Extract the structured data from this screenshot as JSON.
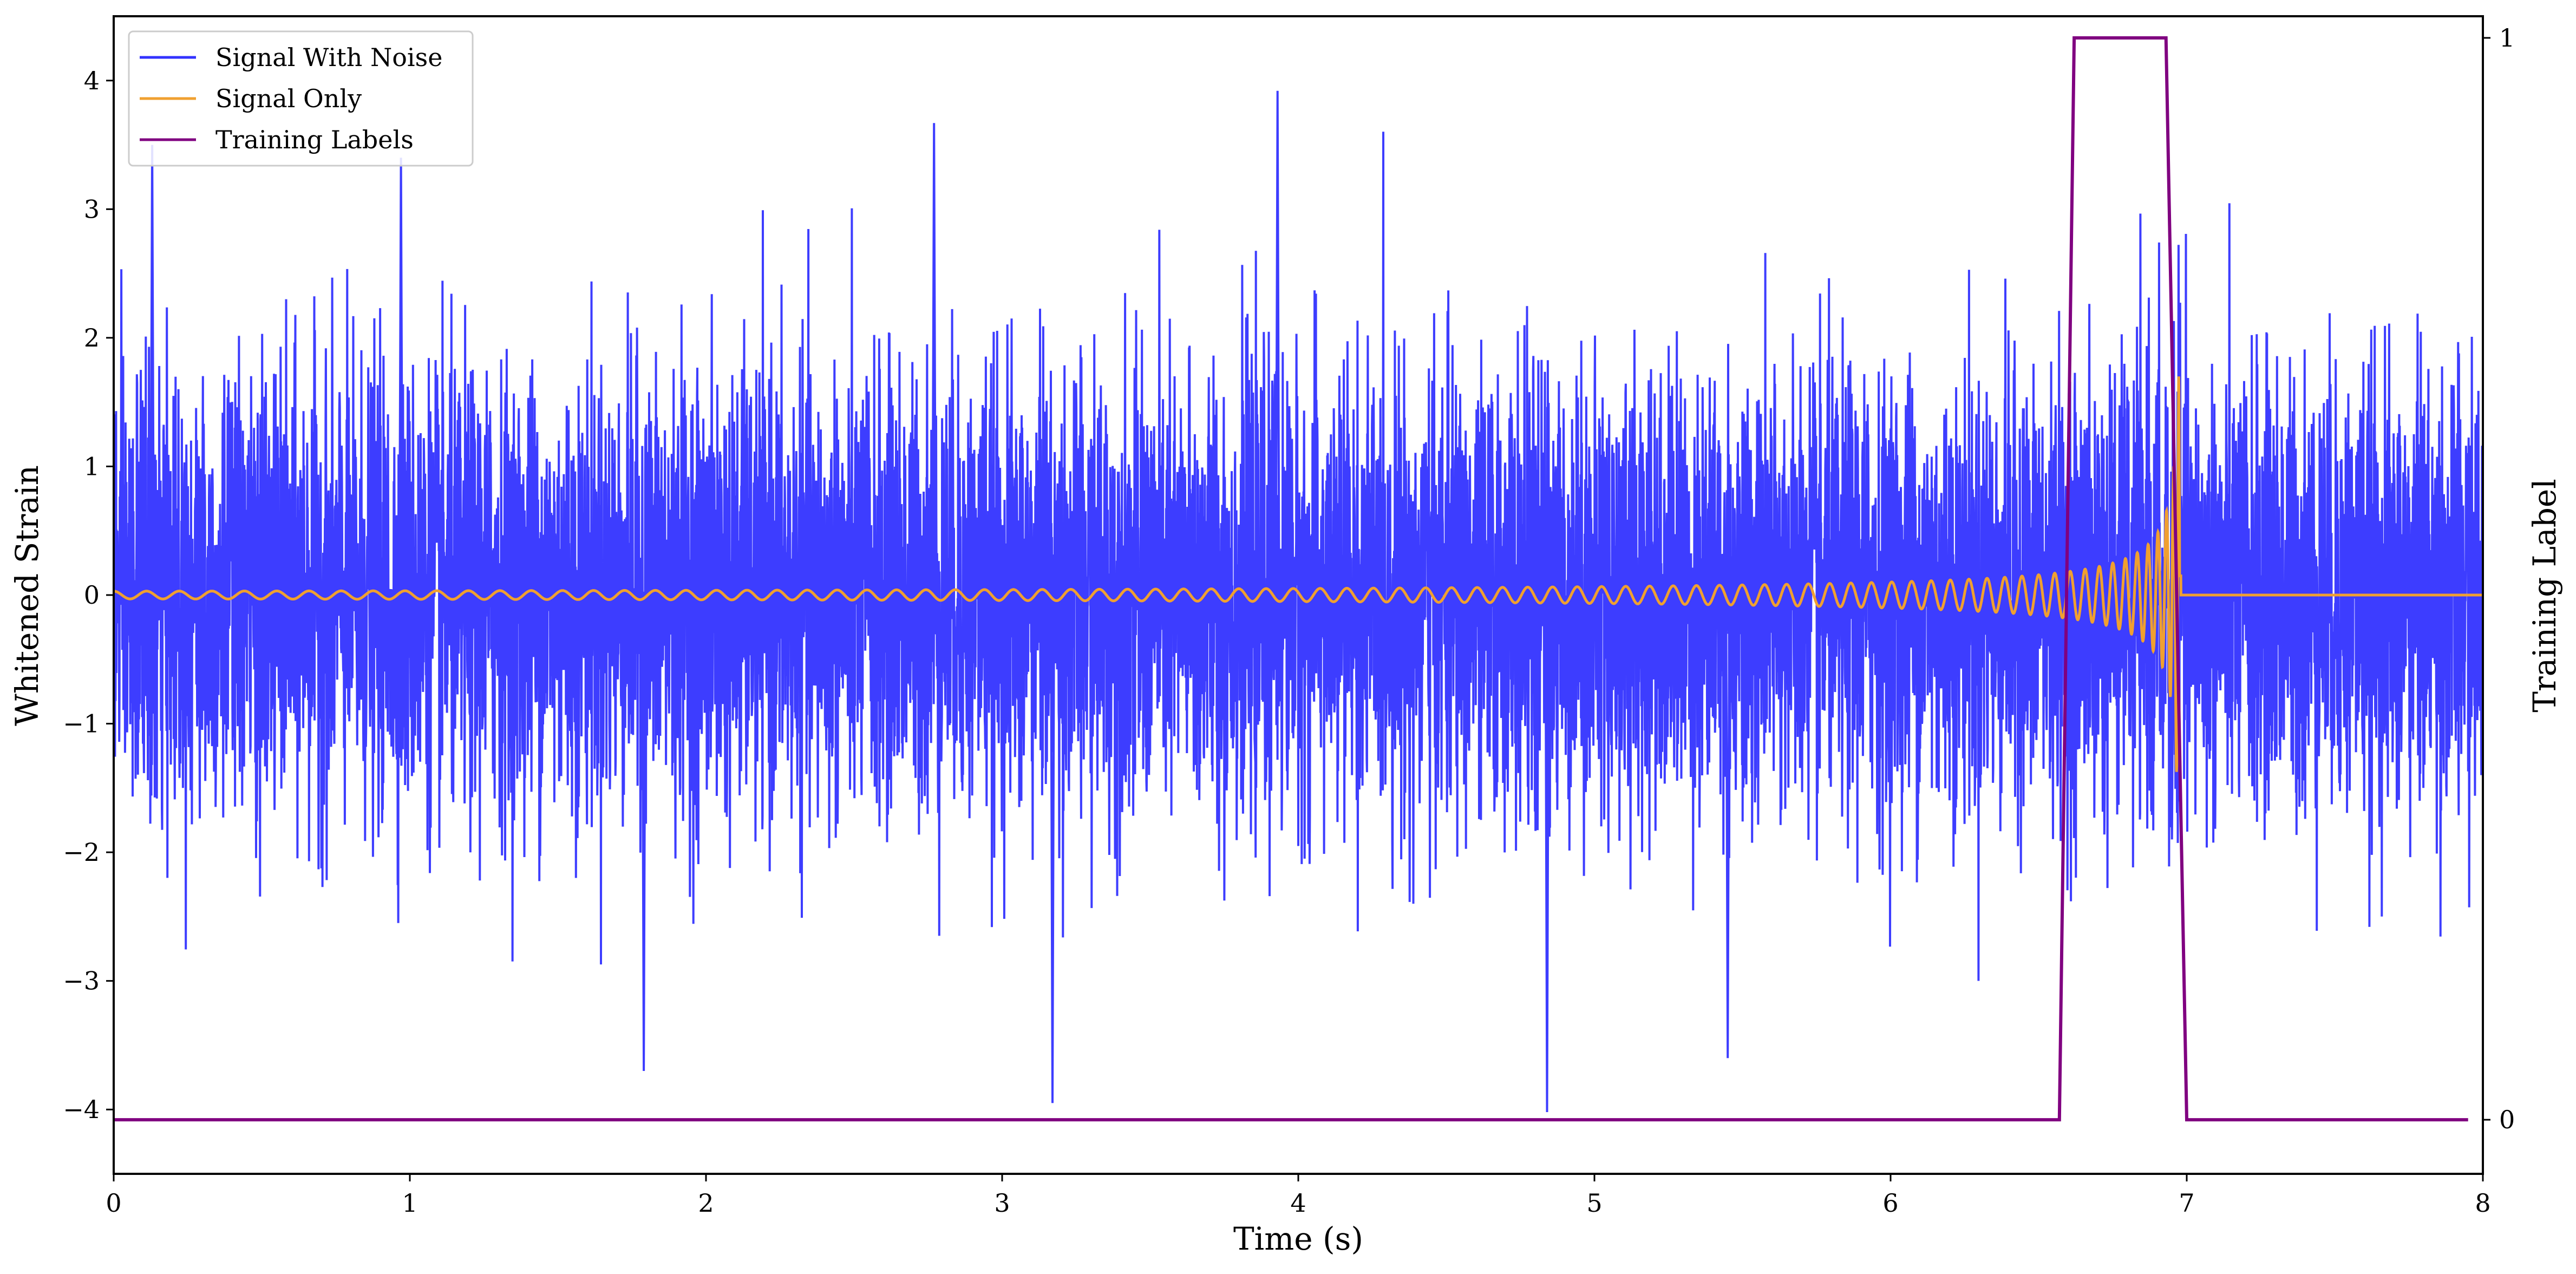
{
  "chart_data": {
    "type": "line",
    "xlabel": "Time (s)",
    "ylabel_left": "Whitened Strain",
    "ylabel_right": "Training Label",
    "xlim": [
      0,
      8
    ],
    "ylim_left": [
      -4.5,
      4.5
    ],
    "ylim_right": [
      -0.05,
      1.02
    ],
    "x_ticks": [
      "0",
      "1",
      "2",
      "3",
      "4",
      "5",
      "6",
      "7",
      "8"
    ],
    "y_ticks_left": [
      "−4",
      "−3",
      "−2",
      "−1",
      "0",
      "1",
      "2",
      "3",
      "4"
    ],
    "y_ticks_right": [
      "0",
      "1"
    ],
    "grid": false,
    "legend_position": "top-left",
    "series": [
      {
        "name": "Signal With Noise",
        "color": "#3333ff",
        "axis": "left",
        "description_values": {
          "noise_std": 0.85,
          "range": [
            -4.0,
            3.9
          ]
        },
        "spikes": [
          {
            "x": 0.13,
            "y": 3.5
          },
          {
            "x": 0.97,
            "y": 3.4
          },
          {
            "x": 2.77,
            "y": 3.67
          },
          {
            "x": 3.93,
            "y": 3.92
          },
          {
            "x": 3.17,
            "y": -3.95
          },
          {
            "x": 4.84,
            "y": -4.02
          },
          {
            "x": 1.79,
            "y": -3.7
          },
          {
            "x": 5.45,
            "y": -3.6
          },
          {
            "x": 6.95,
            "y": -1.9
          }
        ]
      },
      {
        "name": "Signal Only",
        "color": "#f0a030",
        "axis": "left",
        "chirp": {
          "start_x": 0,
          "merger_x": 6.98,
          "end_x": 8,
          "start_amp": 0.03,
          "peak_amp": 1.7,
          "start_freq": 9,
          "end_freq": 90
        }
      },
      {
        "name": "Training Labels",
        "color": "#800080",
        "axis": "right",
        "x": [
          0,
          6.57,
          6.62,
          6.93,
          7.0,
          7.95
        ],
        "y": [
          0,
          0,
          1,
          1,
          0,
          0
        ]
      }
    ]
  }
}
